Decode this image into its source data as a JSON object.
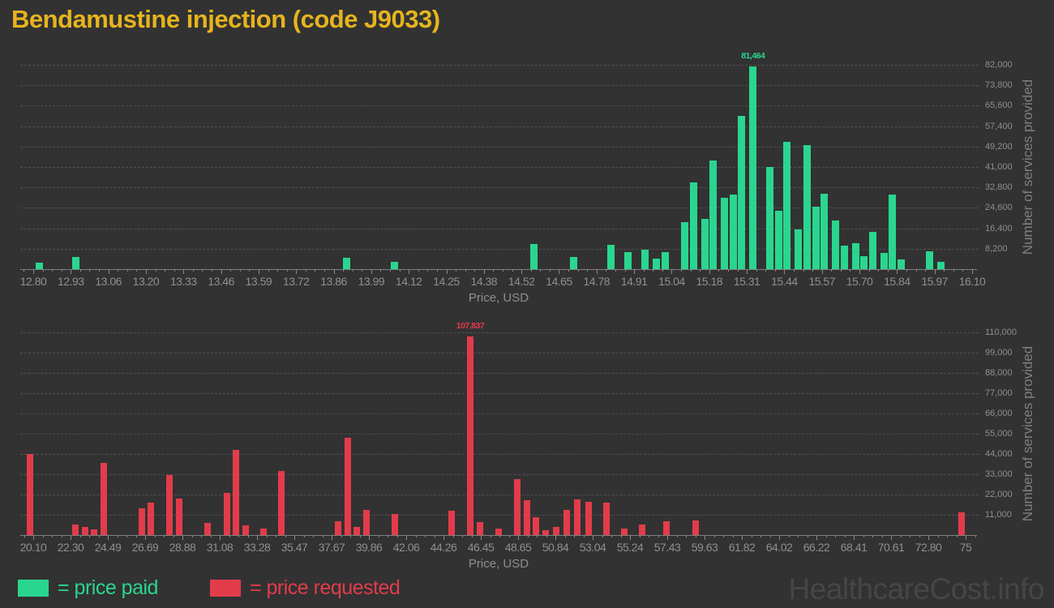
{
  "title": "Bendamustine injection (code J9033)",
  "watermark": "HealthcareCost.info",
  "legend": {
    "paid": "= price paid",
    "requested": "= price requested"
  },
  "colors": {
    "bg": "#323232",
    "title": "#e6b41e",
    "paid": "#2ad68f",
    "requested": "#e23c4b",
    "axis_text": "#8f8f8f",
    "grid": "#515151",
    "watermark": "#464646"
  },
  "chart_data": [
    {
      "type": "bar",
      "series_name": "price paid",
      "color": "#2ad68f",
      "xlabel": "Price, USD",
      "ylabel": "Number of services provided",
      "peak_label": "81,464",
      "x_axis": {
        "min": 12.8,
        "max": 16.1
      },
      "y_axis": {
        "min": 0,
        "max": 82000
      },
      "x_tick_labels": [
        "12.80",
        "12.93",
        "13.06",
        "13.20",
        "13.33",
        "13.46",
        "13.59",
        "13.72",
        "13.86",
        "13.99",
        "14.12",
        "14.25",
        "14.38",
        "14.52",
        "14.65",
        "14.78",
        "14.91",
        "15.04",
        "15.18",
        "15.31",
        "15.44",
        "15.57",
        "15.70",
        "15.84",
        "15.97",
        "16.10"
      ],
      "y_tick_labels": [
        "8,200",
        "16,400",
        "24,600",
        "32,800",
        "41,000",
        "49,200",
        "57,400",
        "65,600",
        "73,800",
        "82,000"
      ],
      "bars": [
        [
          12.82,
          2500
        ],
        [
          12.95,
          4900
        ],
        [
          13.9,
          4500
        ],
        [
          14.07,
          2800
        ],
        [
          14.56,
          10200
        ],
        [
          14.7,
          5000
        ],
        [
          14.83,
          9900
        ],
        [
          14.89,
          6900
        ],
        [
          14.95,
          7900
        ],
        [
          14.99,
          4100
        ],
        [
          15.02,
          6900
        ],
        [
          15.09,
          19000
        ],
        [
          15.12,
          34900
        ],
        [
          15.16,
          20200
        ],
        [
          15.19,
          43700
        ],
        [
          15.23,
          28500
        ],
        [
          15.26,
          29900
        ],
        [
          15.29,
          61600
        ],
        [
          15.33,
          81464
        ],
        [
          15.39,
          41100
        ],
        [
          15.42,
          23300
        ],
        [
          15.45,
          51100
        ],
        [
          15.49,
          15900
        ],
        [
          15.52,
          49900
        ],
        [
          15.55,
          25000
        ],
        [
          15.58,
          30300
        ],
        [
          15.62,
          19600
        ],
        [
          15.65,
          9500
        ],
        [
          15.69,
          10300
        ],
        [
          15.72,
          5200
        ],
        [
          15.75,
          15000
        ],
        [
          15.79,
          6600
        ],
        [
          15.82,
          30000
        ],
        [
          15.85,
          3800
        ],
        [
          15.95,
          7300
        ],
        [
          15.99,
          2900
        ]
      ]
    },
    {
      "type": "bar",
      "series_name": "price requested",
      "color": "#e23c4b",
      "xlabel": "Price, USD",
      "ylabel": "Number of services provided",
      "peak_label": "107,837",
      "x_axis": {
        "min": 20.1,
        "max": 75
      },
      "y_axis": {
        "min": 0,
        "max": 110000
      },
      "x_tick_labels": [
        "20.10",
        "22.30",
        "24.49",
        "26.69",
        "28.88",
        "31.08",
        "33.28",
        "35.47",
        "37.67",
        "39.86",
        "42.06",
        "44.26",
        "46.45",
        "48.65",
        "50.84",
        "53.04",
        "55.24",
        "57.43",
        "59.63",
        "61.82",
        "64.02",
        "66.22",
        "68.41",
        "70.61",
        "72.80",
        "75"
      ],
      "y_tick_labels": [
        "11,000",
        "22,000",
        "33,000",
        "44,000",
        "55,000",
        "66,000",
        "77,000",
        "88,000",
        "99,000",
        "110,000"
      ],
      "bars": [
        [
          19.92,
          44000
        ],
        [
          22.58,
          5700
        ],
        [
          23.16,
          4300
        ],
        [
          23.68,
          3200
        ],
        [
          24.25,
          39300
        ],
        [
          26.5,
          14600
        ],
        [
          27.02,
          17500
        ],
        [
          28.14,
          32600
        ],
        [
          28.69,
          19700
        ],
        [
          30.36,
          6800
        ],
        [
          31.49,
          23100
        ],
        [
          32.03,
          46300
        ],
        [
          32.61,
          5200
        ],
        [
          33.68,
          3500
        ],
        [
          34.71,
          34600
        ],
        [
          38.05,
          7600
        ],
        [
          38.6,
          53000
        ],
        [
          39.15,
          4300
        ],
        [
          39.72,
          13800
        ],
        [
          41.39,
          11400
        ],
        [
          44.73,
          13100
        ],
        [
          45.83,
          107837
        ],
        [
          46.4,
          6900
        ],
        [
          47.5,
          3500
        ],
        [
          48.6,
          30500
        ],
        [
          49.15,
          19000
        ],
        [
          49.7,
          9900
        ],
        [
          50.27,
          2500
        ],
        [
          50.89,
          4400
        ],
        [
          51.51,
          13500
        ],
        [
          52.13,
          19500
        ],
        [
          52.78,
          18000
        ],
        [
          53.83,
          17500
        ],
        [
          54.88,
          3700
        ],
        [
          55.93,
          5900
        ],
        [
          57.38,
          7400
        ],
        [
          59.08,
          8100
        ],
        [
          74.76,
          12400
        ]
      ]
    }
  ]
}
